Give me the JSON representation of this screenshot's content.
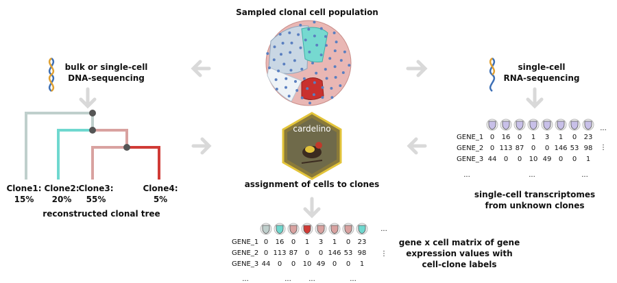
{
  "title": "Sampled clonal cell population",
  "dna_seq": {
    "line1": "bulk or single-cell",
    "line2": "DNA-sequencing"
  },
  "rna_seq": {
    "line1": "single-cell",
    "line2": "RNA-sequencing"
  },
  "logo": {
    "text": "cardelino"
  },
  "assignment": "assignment of cells to clones",
  "tree": {
    "caption": "reconstructed clonal tree",
    "clones": [
      {
        "name": "Clone1:",
        "pct": "15%",
        "color": "#bfcfcc"
      },
      {
        "name": "Clone2:",
        "pct": "20%",
        "color": "#6fd8cf"
      },
      {
        "name": "Clone3:",
        "pct": "55%",
        "color": "#d9a2a0"
      },
      {
        "name": "Clone4:",
        "pct": "5%",
        "color": "#d03b36"
      }
    ]
  },
  "unknown_matrix": {
    "caption_line1": "single-cell transcriptomes",
    "caption_line2": "from unknown clones",
    "rows": [
      {
        "gene": "GENE_1",
        "values": [
          "0",
          "16",
          "0",
          "1",
          "3",
          "1",
          "0",
          "23"
        ]
      },
      {
        "gene": "GENE_2",
        "values": [
          "0",
          "113",
          "87",
          "0",
          "0",
          "146",
          "53",
          "98"
        ]
      },
      {
        "gene": "GENE_3",
        "values": [
          "44",
          "0",
          "0",
          "10",
          "49",
          "0",
          "0",
          "1"
        ]
      }
    ],
    "ellipsis": "...",
    "vellipsis": "⋮"
  },
  "labeled_matrix": {
    "caption_line1": "gene x cell matrix of gene",
    "caption_line2": "expression values with",
    "caption_line3": "cell-clone labels",
    "rows": [
      {
        "gene": "GENE_1",
        "values": [
          "0",
          "16",
          "0",
          "1",
          "3",
          "1",
          "0",
          "23"
        ]
      },
      {
        "gene": "GENE_2",
        "values": [
          "0",
          "113",
          "87",
          "0",
          "0",
          "146",
          "53",
          "98"
        ]
      },
      {
        "gene": "GENE_3",
        "values": [
          "44",
          "0",
          "0",
          "10",
          "49",
          "0",
          "0",
          "1"
        ]
      }
    ],
    "cell_colors": [
      "#bfcfcc",
      "#6fd8cf",
      "#d9a2a0",
      "#d03b36",
      "#d9a2a0",
      "#d9a2a0",
      "#d9a2a0",
      "#6fd8cf"
    ],
    "ellipsis": "...",
    "vellipsis": "⋮"
  },
  "colors": {
    "arrow": "#d9d9d9",
    "node": "#555555",
    "unknown_cell": "#c8c0e8",
    "logo_border": "#e3c43a",
    "logo_bg": "#8a7a3a"
  }
}
